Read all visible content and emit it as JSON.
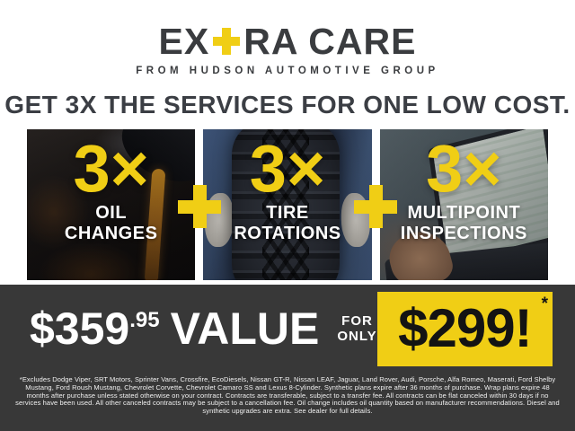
{
  "brand": {
    "logo_prefix": "EX",
    "logo_suffix": "RA CARE",
    "tagline": "FROM HUDSON AUTOMOTIVE GROUP"
  },
  "headline": "GET 3X THE SERVICES FOR ONE LOW COST.",
  "services": [
    {
      "multiplier": "3×",
      "line1": "OIL",
      "line2": "CHANGES"
    },
    {
      "multiplier": "3×",
      "line1": "TIRE",
      "line2": "ROTATIONS"
    },
    {
      "multiplier": "3×",
      "line1": "MULTIPOINT",
      "line2": "INSPECTIONS"
    }
  ],
  "offer": {
    "value_price_dollars": "$359",
    "value_price_cents": ".95",
    "value_label": "VALUE",
    "for_only_line1": "FOR",
    "for_only_line2": "ONLY",
    "sale_price": "$299!",
    "asterisk": "*"
  },
  "disclaimer": "*Excludes Dodge Viper, SRT Motors, Sprinter Vans, Crossfire, EcoDiesels, Nissan GT-R, Nissan LEAF, Jaguar, Land Rover, Audi, Porsche, Alfa Romeo, Maserati, Ford Shelby Mustang, Ford Roush Mustang, Chevrolet Corvette, Chevrolet Camaro SS and Lexus 8-Cylinder. Synthetic plans expire after 36 months of purchase. Wrap plans expire 48 months after purchase unless stated otherwise on your contract. Contracts are transferable, subject to a transfer fee. All contracts can be flat canceled within 30 days if no services have been used. All other canceled contracts may be subject to a cancellation fee. Oil change includes oil quantity based on manufacturer recommendations. Diesel and synthetic upgrades are extra. See dealer for full details.",
  "colors": {
    "yellow": "#F0CE15",
    "charcoal": "#3A3C3F",
    "dark_background": "#383838",
    "white": "#FFFFFF"
  }
}
